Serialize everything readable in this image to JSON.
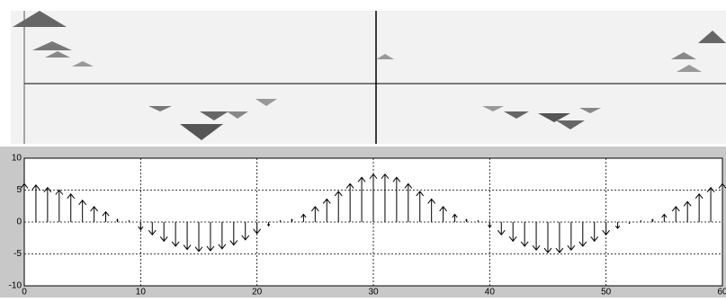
{
  "chart_data": {
    "type": "quiver",
    "x": [
      0,
      1,
      2,
      3,
      4,
      5,
      6,
      7,
      8,
      9,
      10,
      11,
      12,
      13,
      14,
      15,
      16,
      17,
      18,
      19,
      20,
      21,
      22,
      23,
      24,
      25,
      26,
      27,
      28,
      29,
      30,
      31,
      32,
      33,
      34,
      35,
      36,
      37,
      38,
      39,
      40,
      41,
      42,
      43,
      44,
      45,
      46,
      47,
      48,
      49,
      50,
      51,
      52,
      53,
      54,
      55,
      56,
      57,
      58,
      59,
      60
    ],
    "values": [
      6,
      5.8,
      5.4,
      5,
      4.4,
      3.4,
      2.4,
      1.6,
      0.4,
      0.2,
      -1.2,
      -2,
      -3,
      -3.8,
      -4.3,
      -4.6,
      -4.5,
      -4.2,
      -3.6,
      -2.8,
      -1.8,
      -0.6,
      0.2,
      0.4,
      1.2,
      2.4,
      3.6,
      4.8,
      6,
      7,
      7.5,
      7.5,
      7,
      6,
      4.8,
      3.6,
      2.4,
      1.2,
      0.4,
      0.2,
      -0.8,
      -2,
      -3,
      -3.8,
      -4.4,
      -4.8,
      -4.8,
      -4.4,
      -3.8,
      -3,
      -2,
      -1,
      -0.2,
      0.2,
      0.4,
      1.2,
      2.4,
      3.2,
      4.4,
      5.4,
      6
    ],
    "color": "#000000",
    "xlim": [
      0,
      60
    ],
    "xticks": [
      0,
      10,
      20,
      30,
      40,
      50,
      60
    ],
    "ylim": [
      -10,
      10
    ],
    "yticks": [
      -10,
      -5,
      0,
      5,
      10
    ],
    "grid": true
  }
}
